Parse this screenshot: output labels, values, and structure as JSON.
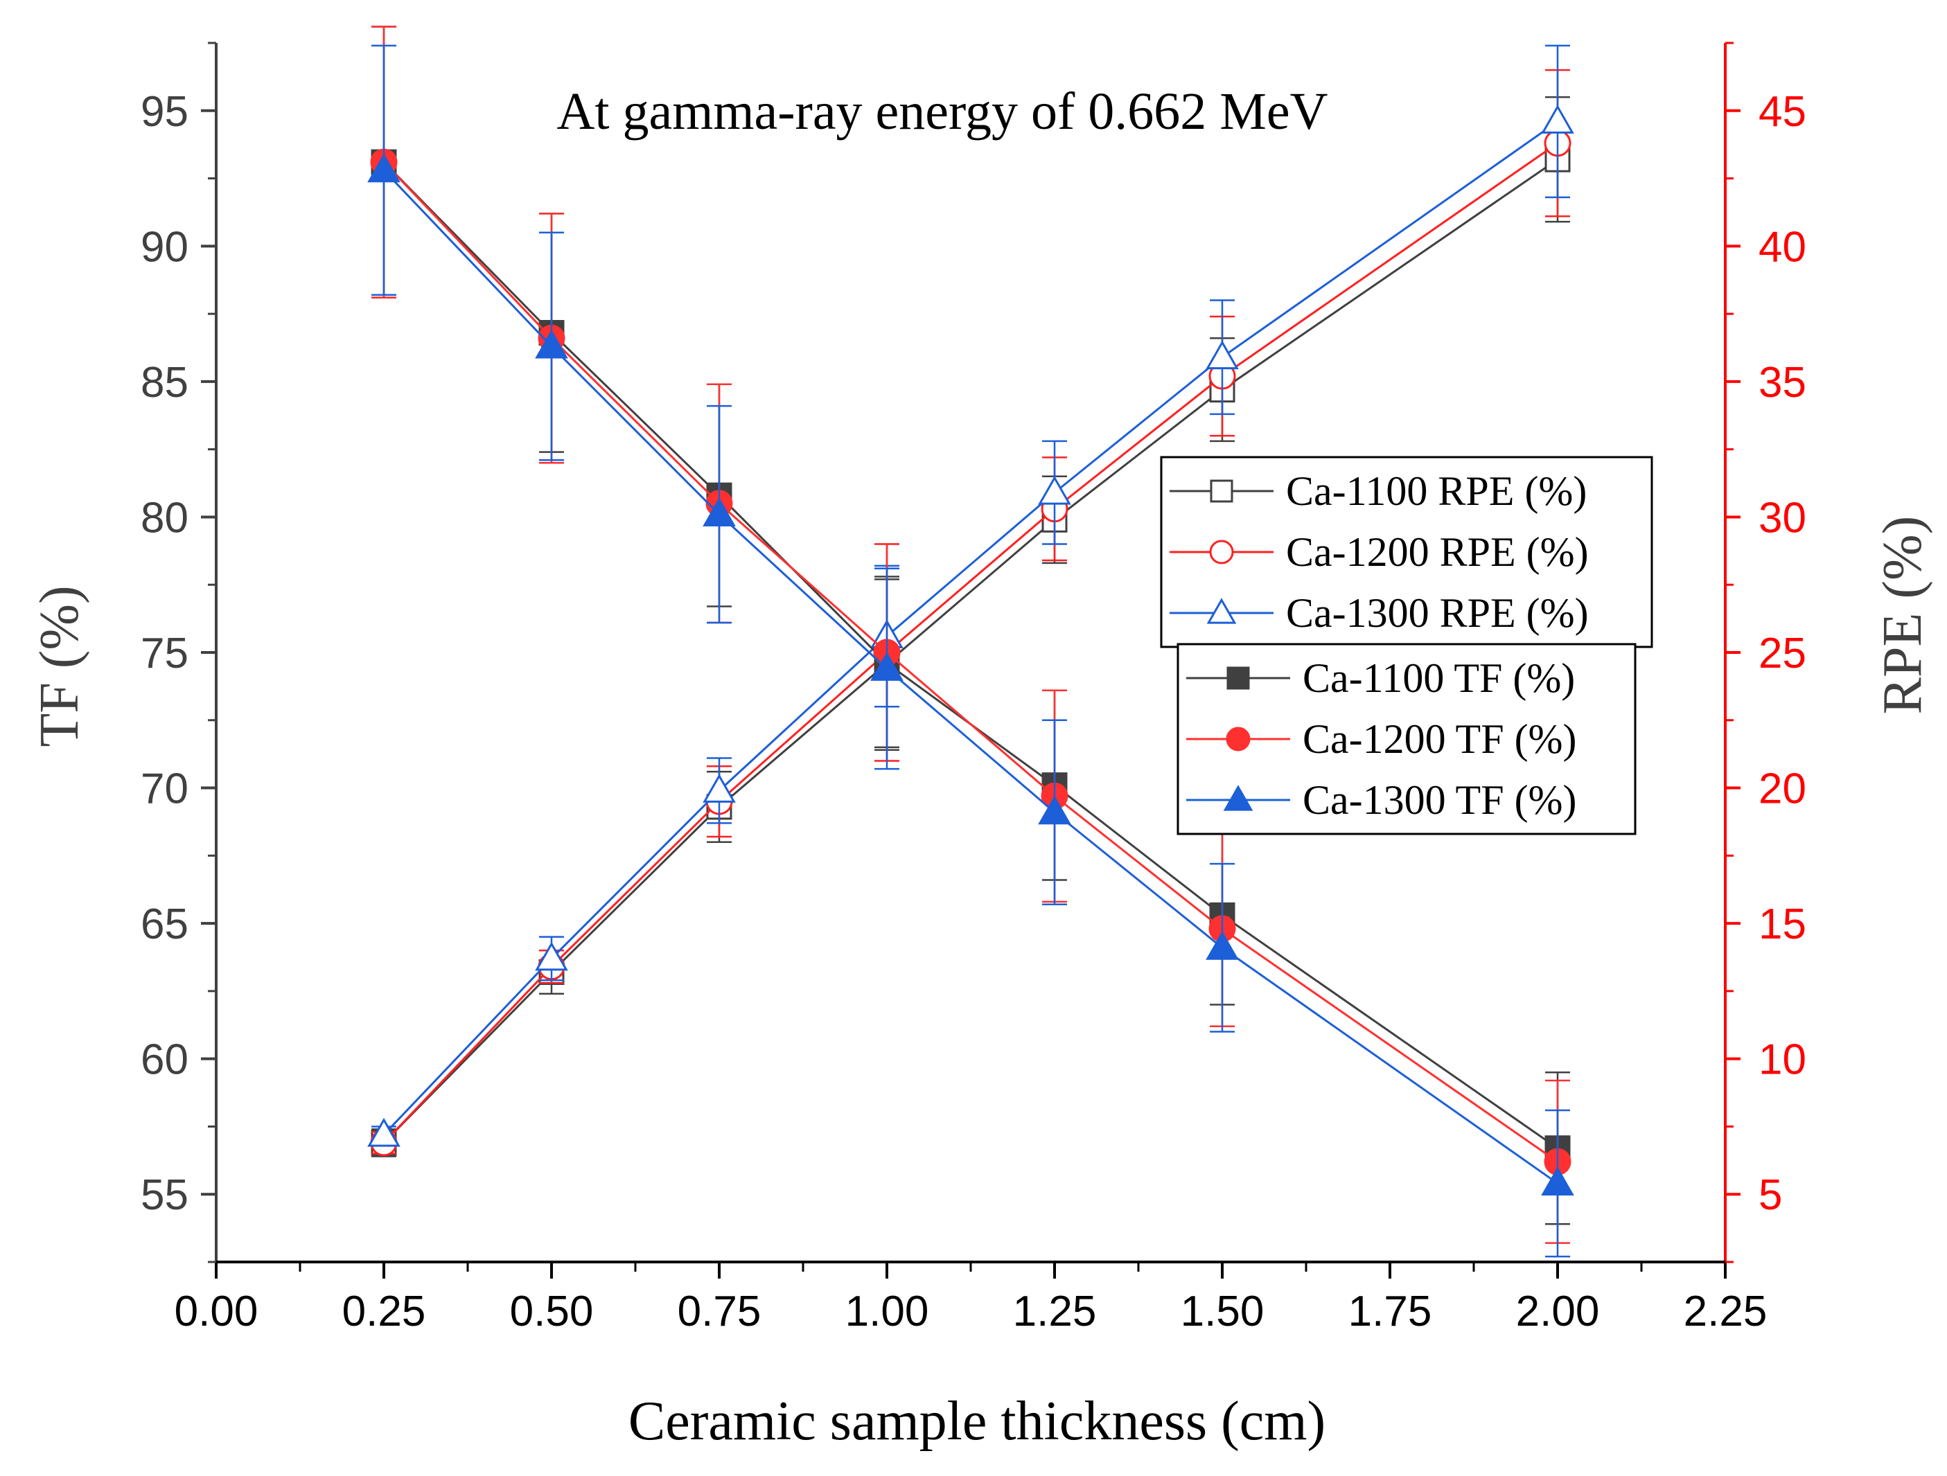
{
  "chart_data": {
    "type": "line",
    "title": "At gamma-ray energy of 0.662 MeV",
    "xlabel": "Ceramic sample thickness (cm)",
    "ylabel_left": "TF (%)",
    "ylabel_right": "RPE (%)",
    "xlim": [
      0,
      2.25
    ],
    "ylim_left": [
      52.5,
      97.5
    ],
    "ylim_right": [
      2.5,
      47.5
    ],
    "x_ticks": [
      "0.00",
      "0.25",
      "0.50",
      "0.75",
      "1.00",
      "1.25",
      "1.50",
      "1.75",
      "2.00",
      "2.25"
    ],
    "y_left_ticks": [
      "55",
      "60",
      "65",
      "70",
      "75",
      "80",
      "85",
      "90",
      "95"
    ],
    "y_right_ticks": [
      "5",
      "10",
      "15",
      "20",
      "25",
      "30",
      "35",
      "40",
      "45"
    ],
    "x": [
      0.25,
      0.5,
      0.75,
      1.0,
      1.25,
      1.5,
      2.0
    ],
    "series": [
      {
        "name": "Ca-1100 RPE (%)",
        "axis": "right",
        "color": "#404040",
        "marker": "square-open",
        "values": [
          6.9,
          13.2,
          19.3,
          24.6,
          29.9,
          34.7,
          43.2
        ],
        "errors": [
          0.5,
          0.8,
          1.3,
          3.2,
          1.6,
          1.9,
          2.3
        ]
      },
      {
        "name": "Ca-1200 RPE (%)",
        "axis": "right",
        "color": "#ff2020",
        "marker": "circle-open",
        "values": [
          6.9,
          13.4,
          19.5,
          25.0,
          30.3,
          35.2,
          43.8
        ],
        "errors": [
          0.4,
          0.6,
          1.3,
          4.0,
          1.9,
          2.2,
          2.7
        ]
      },
      {
        "name": "Ca-1300 RPE (%)",
        "axis": "right",
        "color": "#1c5fd8",
        "marker": "triangle-open",
        "values": [
          7.2,
          13.7,
          19.9,
          25.6,
          30.9,
          35.9,
          44.6
        ],
        "errors": [
          0.3,
          0.8,
          1.2,
          2.6,
          1.9,
          2.1,
          2.8
        ]
      },
      {
        "name": "Ca-1100 TF (%)",
        "axis": "left",
        "color": "#404040",
        "marker": "square-filled",
        "values": [
          93.1,
          86.8,
          80.8,
          74.6,
          70.1,
          65.3,
          56.7
        ],
        "errors": [
          5.0,
          4.4,
          4.1,
          3.1,
          3.5,
          3.3,
          2.8
        ]
      },
      {
        "name": "Ca-1200 TF (%)",
        "axis": "left",
        "color": "#ff3030",
        "marker": "circle-filled",
        "values": [
          93.1,
          86.6,
          80.5,
          75.0,
          69.7,
          64.8,
          56.2
        ],
        "errors": [
          5.0,
          4.6,
          4.4,
          4.0,
          3.9,
          3.6,
          3.0
        ]
      },
      {
        "name": "Ca-1300 TF (%)",
        "axis": "left",
        "color": "#1c5fd8",
        "marker": "triangle-filled",
        "values": [
          92.8,
          86.3,
          80.1,
          74.4,
          69.1,
          64.1,
          55.4
        ],
        "errors": [
          4.6,
          4.2,
          4.0,
          3.7,
          3.4,
          3.1,
          2.7
        ]
      }
    ],
    "legend_placement": "center-right"
  },
  "colors": {
    "left_axis": "#404040",
    "right_axis": "#ff0000",
    "x_axis": "#000000"
  }
}
